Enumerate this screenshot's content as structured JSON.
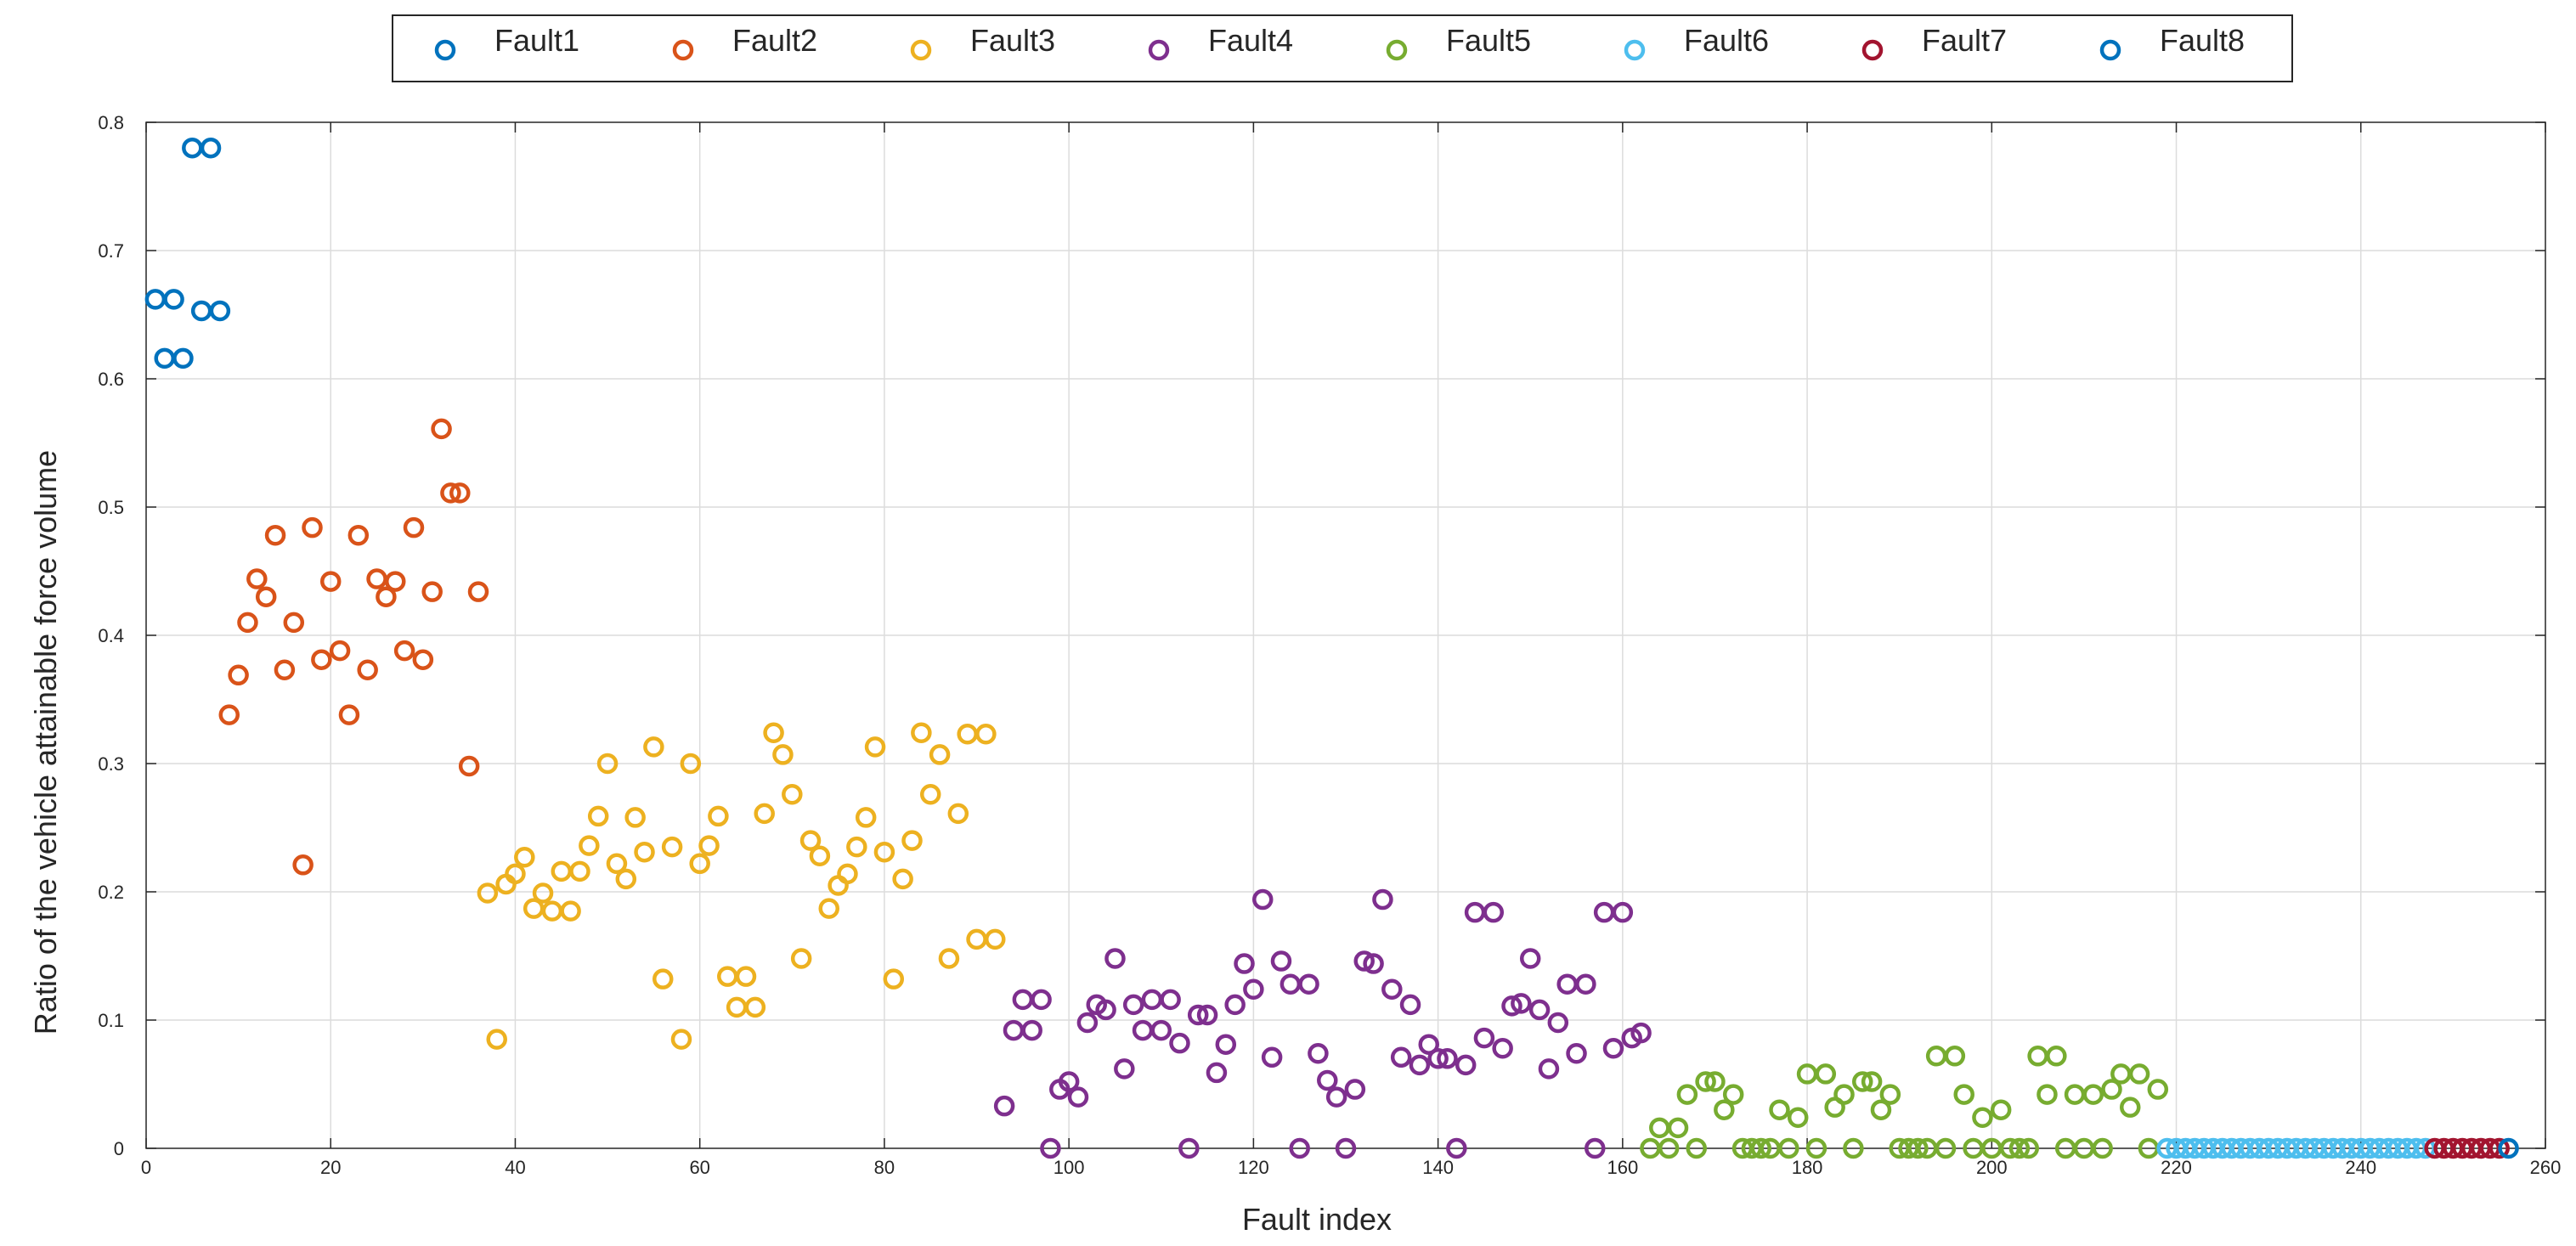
{
  "chart_data": {
    "type": "scatter",
    "title": "",
    "xlabel": "Fault index",
    "ylabel": "Ratio of the vehicle attainable force volume",
    "xlim": [
      0,
      260
    ],
    "ylim": [
      0,
      0.8
    ],
    "xticks": [
      0,
      20,
      40,
      60,
      80,
      100,
      120,
      140,
      160,
      180,
      200,
      220,
      240,
      260
    ],
    "yticks": [
      0,
      0.1,
      0.2,
      0.3,
      0.4,
      0.5,
      0.6,
      0.7,
      0.8
    ],
    "grid": true,
    "legend_position": "top-outside",
    "series": [
      {
        "name": "Fault1",
        "color": "#0072BD",
        "x": [
          1,
          2,
          3,
          4,
          5,
          6,
          7,
          8
        ],
        "y": [
          0.662,
          0.616,
          0.662,
          0.616,
          0.78,
          0.653,
          0.78,
          0.653
        ]
      },
      {
        "name": "Fault2",
        "color": "#D95319",
        "x": [
          9,
          10,
          11,
          12,
          13,
          14,
          15,
          16,
          17,
          18,
          19,
          20,
          21,
          22,
          23,
          24,
          25,
          26,
          27,
          28,
          29,
          30,
          31,
          32,
          33,
          34,
          35,
          36
        ],
        "y": [
          0.338,
          0.369,
          0.41,
          0.444,
          0.43,
          0.478,
          0.373,
          0.41,
          0.221,
          0.484,
          0.381,
          0.442,
          0.388,
          0.338,
          0.478,
          0.373,
          0.444,
          0.43,
          0.442,
          0.388,
          0.484,
          0.381,
          0.434,
          0.561,
          0.511,
          0.511,
          0.298,
          0.434
        ]
      },
      {
        "name": "Fault3",
        "color": "#EDB120",
        "x": [
          37,
          38,
          39,
          40,
          41,
          42,
          43,
          44,
          45,
          46,
          47,
          48,
          49,
          50,
          51,
          52,
          53,
          54,
          55,
          56,
          57,
          58,
          59,
          60,
          61,
          62,
          63,
          64,
          65,
          66,
          67,
          68,
          69,
          70,
          71,
          72,
          73,
          74,
          75,
          76,
          77,
          78,
          79,
          80,
          81,
          82,
          83,
          84,
          85,
          86,
          87,
          88,
          89,
          90,
          91,
          92
        ],
        "y": [
          0.199,
          0.085,
          0.206,
          0.214,
          0.227,
          0.187,
          0.199,
          0.185,
          0.216,
          0.185,
          0.216,
          0.236,
          0.259,
          0.3,
          0.222,
          0.21,
          0.258,
          0.231,
          0.313,
          0.132,
          0.235,
          0.085,
          0.3,
          0.222,
          0.236,
          0.259,
          0.134,
          0.11,
          0.134,
          0.11,
          0.261,
          0.324,
          0.307,
          0.276,
          0.148,
          0.24,
          0.228,
          0.187,
          0.205,
          0.214,
          0.235,
          0.258,
          0.313,
          0.231,
          0.132,
          0.21,
          0.24,
          0.324,
          0.276,
          0.307,
          0.148,
          0.261,
          0.323,
          0.163,
          0.323,
          0.163
        ]
      },
      {
        "name": "Fault4",
        "color": "#7E2F8E",
        "x": [
          93,
          94,
          95,
          96,
          97,
          98,
          99,
          100,
          101,
          102,
          103,
          104,
          105,
          106,
          107,
          108,
          109,
          110,
          111,
          112,
          113,
          114,
          115,
          116,
          117,
          118,
          119,
          120,
          121,
          122,
          123,
          124,
          125,
          126,
          127,
          128,
          129,
          130,
          131,
          132,
          133,
          134,
          135,
          136,
          137,
          138,
          139,
          140,
          141,
          142,
          143,
          144,
          145,
          146,
          147,
          148,
          149,
          150,
          151,
          152,
          153,
          154,
          155,
          156,
          157,
          158,
          159,
          160,
          161,
          162
        ],
        "y": [
          0.033,
          0.092,
          0.116,
          0.092,
          0.116,
          0.0,
          0.046,
          0.052,
          0.04,
          0.098,
          0.112,
          0.108,
          0.148,
          0.062,
          0.112,
          0.092,
          0.116,
          0.092,
          0.116,
          0.082,
          0.0,
          0.104,
          0.104,
          0.059,
          0.081,
          0.112,
          0.144,
          0.124,
          0.194,
          0.071,
          0.146,
          0.128,
          0.0,
          0.128,
          0.074,
          0.053,
          0.04,
          0.0,
          0.046,
          0.146,
          0.144,
          0.194,
          0.124,
          0.071,
          0.112,
          0.065,
          0.081,
          0.07,
          0.07,
          0.0,
          0.065,
          0.184,
          0.086,
          0.184,
          0.078,
          0.111,
          0.113,
          0.148,
          0.108,
          0.062,
          0.098,
          0.128,
          0.074,
          0.128,
          0.0,
          0.184,
          0.078,
          0.184,
          0.086,
          0.09
        ]
      },
      {
        "name": "Fault5",
        "color": "#77AC30",
        "x": [
          163,
          164,
          165,
          166,
          167,
          168,
          169,
          170,
          171,
          172,
          173,
          174,
          175,
          176,
          177,
          178,
          179,
          180,
          181,
          182,
          183,
          184,
          185,
          186,
          187,
          188,
          189,
          190,
          191,
          192,
          193,
          194,
          195,
          196,
          197,
          198,
          199,
          200,
          201,
          202,
          203,
          204,
          205,
          206,
          207,
          208,
          209,
          210,
          211,
          212,
          213,
          214,
          215,
          216,
          217,
          218
        ],
        "y": [
          0.0,
          0.016,
          0.0,
          0.016,
          0.042,
          0.0,
          0.052,
          0.052,
          0.03,
          0.042,
          0.0,
          0.0,
          0.0,
          0.0,
          0.03,
          0.0,
          0.024,
          0.058,
          0.0,
          0.058,
          0.032,
          0.042,
          0.0,
          0.052,
          0.052,
          0.03,
          0.042,
          0.0,
          0.0,
          0.0,
          0.0,
          0.072,
          0.0,
          0.072,
          0.042,
          0.0,
          0.024,
          0.0,
          0.03,
          0.0,
          0.0,
          0.0,
          0.072,
          0.042,
          0.072,
          0.0,
          0.042,
          0.0,
          0.042,
          0.0,
          0.046,
          0.058,
          0.032,
          0.058,
          0.0,
          0.046
        ]
      },
      {
        "name": "Fault6",
        "color": "#4DBEEE",
        "x": [
          219,
          220,
          221,
          222,
          223,
          224,
          225,
          226,
          227,
          228,
          229,
          230,
          231,
          232,
          233,
          234,
          235,
          236,
          237,
          238,
          239,
          240,
          241,
          242,
          243,
          244,
          245,
          246,
          247
        ],
        "y": [
          0,
          0,
          0,
          0,
          0,
          0,
          0,
          0,
          0,
          0,
          0,
          0,
          0,
          0,
          0,
          0,
          0,
          0,
          0,
          0,
          0,
          0,
          0,
          0,
          0,
          0,
          0,
          0,
          0
        ]
      },
      {
        "name": "Fault7",
        "color": "#A2142F",
        "x": [
          248,
          249,
          250,
          251,
          252,
          253,
          254,
          255
        ],
        "y": [
          0,
          0,
          0,
          0,
          0,
          0,
          0,
          0
        ]
      },
      {
        "name": "Fault8",
        "color": "#0072BD",
        "x": [
          256
        ],
        "y": [
          0
        ]
      }
    ]
  }
}
